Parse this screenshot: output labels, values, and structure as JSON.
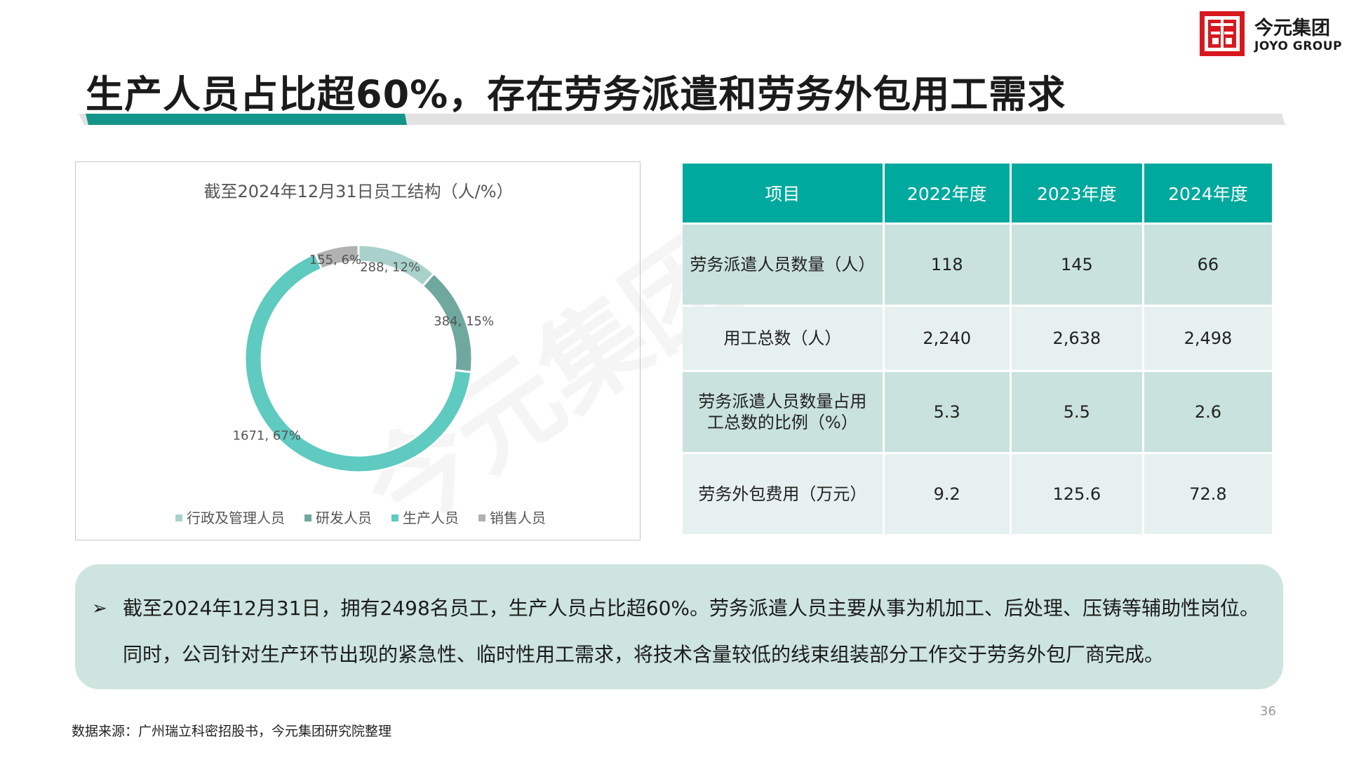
{
  "title": "生产人员占比超60%，存在劳务派遣和劳务外包用工需求",
  "logo": {
    "cn": "今元集团",
    "en": "JOYO GROUP",
    "color": "#d7191f"
  },
  "watermark": "今元集团",
  "colors": {
    "accent": "#00a99d",
    "underline_dark": "#13958a",
    "underline_light": "#e2e2e2"
  },
  "chart_data": {
    "type": "pie",
    "variant": "donut",
    "title": "截至2024年12月31日员工结构（人/%）",
    "categories": [
      "行政及管理人员",
      "研发人员",
      "生产人员",
      "销售人员"
    ],
    "values": [
      288,
      384,
      1671,
      155
    ],
    "percents": [
      12,
      15,
      67,
      6
    ],
    "data_labels": [
      "288, 12%",
      "384, 15%",
      "1671, 67%",
      "155, 6%"
    ],
    "colors": [
      "#a9d1cb",
      "#6fa89e",
      "#5ecac0",
      "#b1b1b1"
    ],
    "legend_position": "bottom"
  },
  "table": {
    "headers": [
      "项目",
      "2022年度",
      "2023年度",
      "2024年度"
    ],
    "rows": [
      {
        "item": [
          "劳务派遣人员数量（人）"
        ],
        "values": [
          "118",
          "145",
          "66"
        ]
      },
      {
        "item": [
          "用工总数（人）"
        ],
        "values": [
          "2,240",
          "2,638",
          "2,498"
        ]
      },
      {
        "item": [
          "劳务派遣人员数量占用",
          "工总数的比例（%）"
        ],
        "values": [
          "5.3",
          "5.5",
          "2.6"
        ]
      },
      {
        "item": [
          "劳务外包费用（万元）"
        ],
        "values": [
          "9.2",
          "125.6",
          "72.8"
        ]
      }
    ]
  },
  "summary": {
    "bullet": "➢",
    "text": "截至2024年12月31日，拥有2498名员工，生产人员占比超60%。劳务派遣人员主要从事为机加工、后处理、压铸等辅助性岗位。同时，公司针对生产环节出现的紧急性、临时性用工需求，将技术含量较低的线束组装部分工作交于劳务外包厂商完成。"
  },
  "page_number": "36",
  "source": "数据来源：广州瑞立科密招股书，今元集团研究院整理"
}
